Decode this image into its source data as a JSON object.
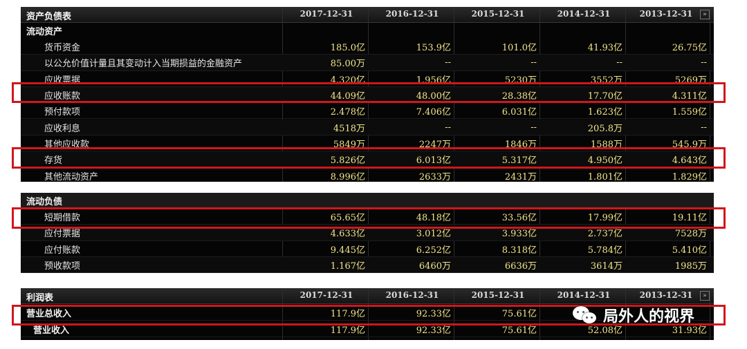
{
  "balance_sheet": {
    "title": "资产负债表",
    "dates": [
      "2017-12-31",
      "2016-12-31",
      "2015-12-31",
      "2014-12-31",
      "2013-12-31"
    ],
    "more_icon": "»",
    "section": "流动资产",
    "rows": [
      {
        "label": "货币资金",
        "values": [
          "185.0亿",
          "153.9亿",
          "101.0亿",
          "41.93亿",
          "26.75亿"
        ]
      },
      {
        "label": "以公允价值计量且其变动计入当期损益的金融资产",
        "values": [
          "85.00万",
          "--",
          "--",
          "--",
          "--"
        ]
      },
      {
        "label": "应收票据",
        "values": [
          "4.320亿",
          "1.956亿",
          "5230万",
          "3552万",
          "5269万"
        ]
      },
      {
        "label": "应收账款",
        "values": [
          "44.09亿",
          "48.00亿",
          "28.38亿",
          "17.70亿",
          "4.311亿"
        ]
      },
      {
        "label": "预付款项",
        "values": [
          "2.478亿",
          "7.406亿",
          "6.031亿",
          "1.623亿",
          "1.559亿"
        ]
      },
      {
        "label": "应收利息",
        "values": [
          "4518万",
          "--",
          "--",
          "205.8万",
          "--"
        ]
      },
      {
        "label": "其他应收款",
        "values": [
          "5849万",
          "2247万",
          "1846万",
          "1588万",
          "545.9万"
        ]
      },
      {
        "label": "存货",
        "values": [
          "5.826亿",
          "6.013亿",
          "5.317亿",
          "4.950亿",
          "4.643亿"
        ]
      },
      {
        "label": "其他流动资产",
        "values": [
          "8.996亿",
          "2633万",
          "2431万",
          "1.801亿",
          "1.829亿"
        ]
      }
    ]
  },
  "liabilities": {
    "section": "流动负债",
    "rows": [
      {
        "label": "短期借款",
        "values": [
          "65.65亿",
          "48.18亿",
          "33.56亿",
          "17.99亿",
          "19.11亿"
        ]
      },
      {
        "label": "应付票据",
        "values": [
          "4.633亿",
          "3.012亿",
          "3.933亿",
          "2.737亿",
          "7528万"
        ]
      },
      {
        "label": "应付账款",
        "values": [
          "9.445亿",
          "6.252亿",
          "8.318亿",
          "5.784亿",
          "5.410亿"
        ]
      },
      {
        "label": "预收款项",
        "values": [
          "1.167亿",
          "6460万",
          "6636万",
          "3614万",
          "1985万"
        ]
      }
    ]
  },
  "income_statement": {
    "title": "利润表",
    "dates": [
      "2017-12-31",
      "2016-12-31",
      "2015-12-31",
      "2014-12-31",
      "2013-12-31"
    ],
    "more_icon": "»",
    "rows": [
      {
        "label": "营业总收入",
        "values": [
          "117.9亿",
          "92.33亿",
          "75.61亿",
          "",
          ""
        ]
      },
      {
        "label": "营业收入",
        "values": [
          "117.9亿",
          "92.33亿",
          "75.61亿",
          "52.08亿",
          "31.93亿"
        ]
      }
    ]
  },
  "watermark": {
    "text": "局外人的视界",
    "icon": "wechat-icon"
  },
  "highlight_color": "#d0171c"
}
